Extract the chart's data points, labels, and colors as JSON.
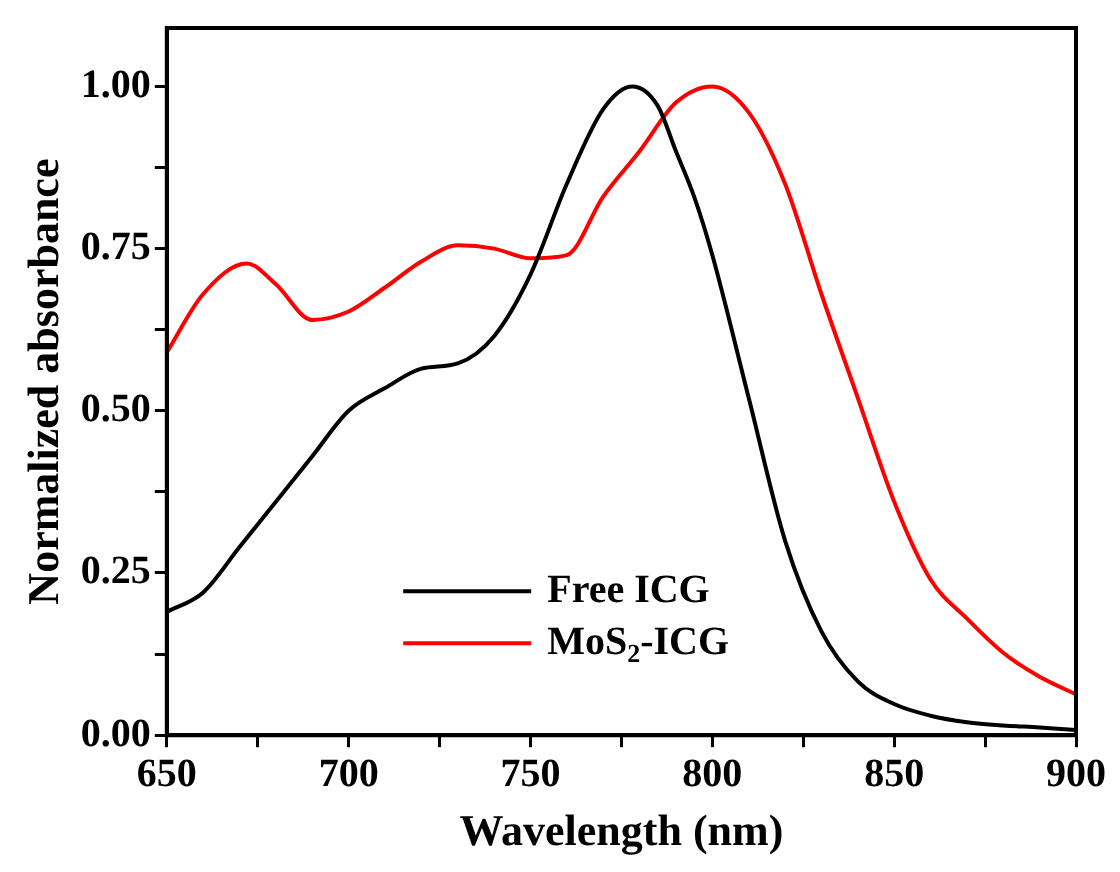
{
  "chart_data": {
    "type": "line",
    "xlabel": "Wavelength (nm)",
    "ylabel": "Normalized absorbance",
    "xlim": [
      650,
      900
    ],
    "ylim": [
      0,
      1.09
    ],
    "xticks": [
      650,
      {
        "value": 675,
        "label": null
      },
      700,
      {
        "value": 725,
        "label": null
      },
      750,
      {
        "value": 775,
        "label": null
      },
      800,
      {
        "value": 825,
        "label": null
      },
      850,
      {
        "value": 875,
        "label": null
      },
      900
    ],
    "yticks": [
      {
        "value": 0,
        "label": "0.00"
      },
      {
        "value": 0.125,
        "label": null
      },
      {
        "value": 0.25,
        "label": "0.25"
      },
      {
        "value": 0.375,
        "label": null
      },
      {
        "value": 0.5,
        "label": "0.50"
      },
      {
        "value": 0.625,
        "label": null
      },
      {
        "value": 0.75,
        "label": "0.75"
      },
      {
        "value": 0.875,
        "label": null
      },
      {
        "value": 1,
        "label": "1.00"
      }
    ],
    "grid": false,
    "legend": "bottom",
    "marker": "none",
    "line_style": "solid",
    "series": [
      {
        "name": "Free ICG",
        "color": "#000000",
        "x": [
          650,
          660,
          670,
          680,
          690,
          700,
          710,
          720,
          730,
          740,
          750,
          760,
          770,
          778,
          785,
          790,
          795,
          800,
          810,
          820,
          830,
          840,
          850,
          860,
          870,
          880,
          890,
          900
        ],
        "values": [
          0.19,
          0.22,
          0.29,
          0.36,
          0.43,
          0.5,
          0.535,
          0.565,
          0.573,
          0.615,
          0.71,
          0.85,
          0.965,
          1.0,
          0.97,
          0.9,
          0.83,
          0.74,
          0.52,
          0.3,
          0.16,
          0.083,
          0.048,
          0.03,
          0.02,
          0.015,
          0.012,
          0.008
        ]
      },
      {
        "name": "MoS$_{2}$-ICG",
        "color": "#ff0000",
        "x": [
          650,
          660,
          672,
          680,
          690,
          700,
          710,
          720,
          730,
          740,
          750,
          760,
          770,
          780,
          790,
          800,
          810,
          820,
          830,
          840,
          850,
          860,
          870,
          880,
          890,
          900
        ],
        "values": [
          0.59,
          0.68,
          0.727,
          0.695,
          0.64,
          0.653,
          0.69,
          0.73,
          0.755,
          0.75,
          0.735,
          0.74,
          0.83,
          0.9,
          0.975,
          1.0,
          0.96,
          0.85,
          0.68,
          0.52,
          0.36,
          0.24,
          0.18,
          0.127,
          0.09,
          0.063
        ]
      }
    ]
  }
}
